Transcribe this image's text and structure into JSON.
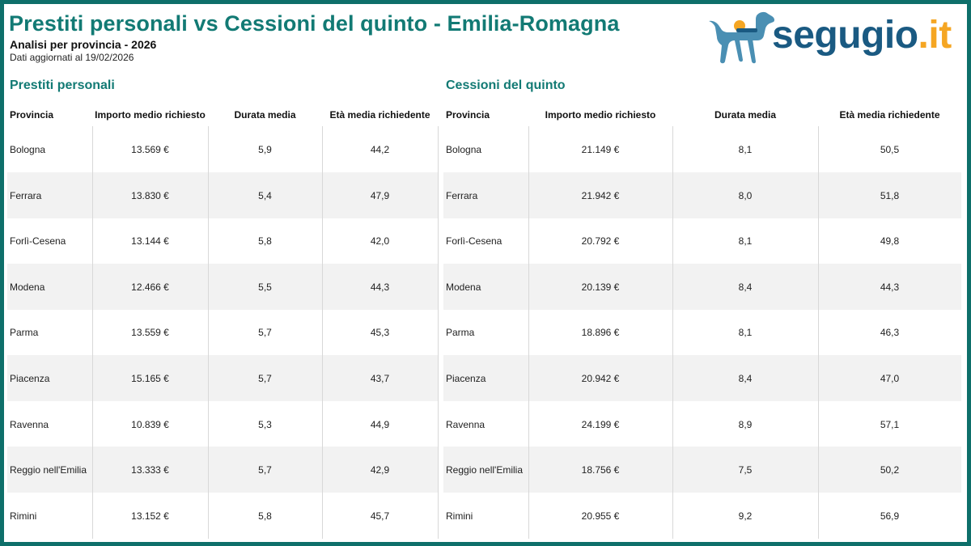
{
  "header": {
    "title": "Prestiti personali vs Cessioni del quinto - Emilia-Romagna",
    "subtitle": "Analisi per provincia - 2026",
    "updated": "Dati aggiornati al 19/02/2026"
  },
  "logo": {
    "name": "segugio",
    "dot": ".",
    "tld": "it"
  },
  "colors": {
    "accent": "#127a74",
    "frame": "#0e6f6a",
    "logo_blue": "#1a5a82",
    "logo_orange": "#f5a623",
    "row_alt": "#f2f2f2"
  },
  "chart_data": [
    {
      "type": "table",
      "title": "Prestiti personali",
      "columns": [
        "Provincia",
        "Importo medio richiesto",
        "Durata media",
        "Età media richiedente"
      ],
      "rows": [
        [
          "Bologna",
          "13.569 €",
          "5,9",
          "44,2"
        ],
        [
          "Ferrara",
          "13.830 €",
          "5,4",
          "47,9"
        ],
        [
          "Forlì-Cesena",
          "13.144 €",
          "5,8",
          "42,0"
        ],
        [
          "Modena",
          "12.466 €",
          "5,5",
          "44,3"
        ],
        [
          "Parma",
          "13.559 €",
          "5,7",
          "45,3"
        ],
        [
          "Piacenza",
          "15.165 €",
          "5,7",
          "43,7"
        ],
        [
          "Ravenna",
          "10.839 €",
          "5,3",
          "44,9"
        ],
        [
          "Reggio nell'Emilia",
          "13.333 €",
          "5,7",
          "42,9"
        ],
        [
          "Rimini",
          "13.152 €",
          "5,8",
          "45,7"
        ]
      ]
    },
    {
      "type": "table",
      "title": "Cessioni del quinto",
      "columns": [
        "Provincia",
        "Importo medio richiesto",
        "Durata media",
        "Età media richiedente"
      ],
      "rows": [
        [
          "Bologna",
          "21.149 €",
          "8,1",
          "50,5"
        ],
        [
          "Ferrara",
          "21.942 €",
          "8,0",
          "51,8"
        ],
        [
          "Forlì-Cesena",
          "20.792 €",
          "8,1",
          "49,8"
        ],
        [
          "Modena",
          "20.139 €",
          "8,4",
          "44,3"
        ],
        [
          "Parma",
          "18.896 €",
          "8,1",
          "46,3"
        ],
        [
          "Piacenza",
          "20.942 €",
          "8,4",
          "47,0"
        ],
        [
          "Ravenna",
          "24.199 €",
          "8,9",
          "57,1"
        ],
        [
          "Reggio nell'Emilia",
          "18.756 €",
          "7,5",
          "50,2"
        ],
        [
          "Rimini",
          "20.955 €",
          "9,2",
          "56,9"
        ]
      ]
    }
  ]
}
